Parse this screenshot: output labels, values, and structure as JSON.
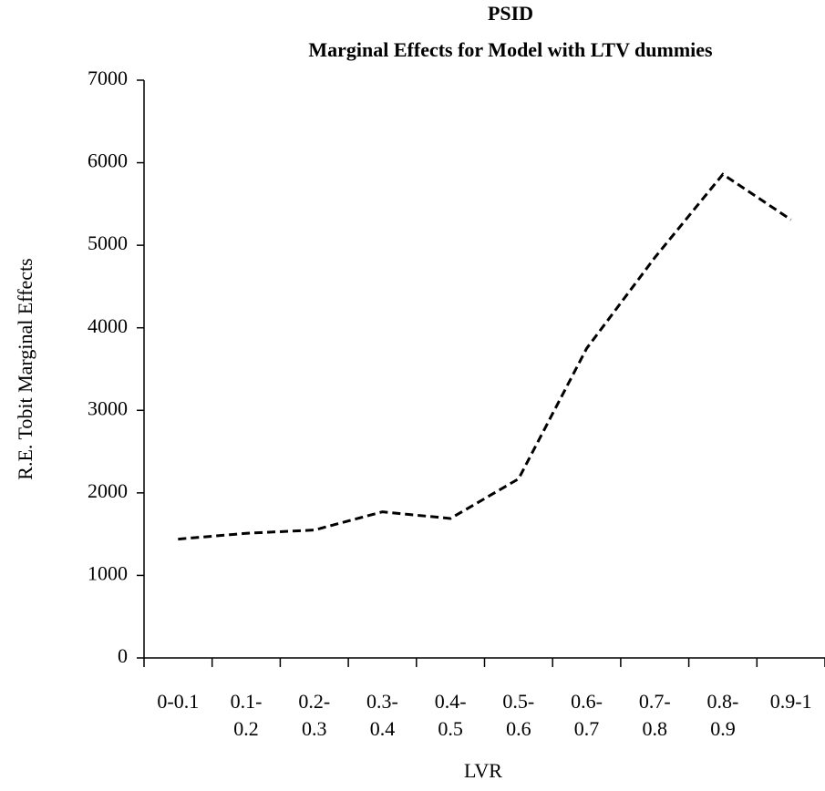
{
  "chart_data": {
    "type": "line",
    "title": "PSID",
    "subtitle": "Marginal Effects for Model with LTV dummies",
    "x_label": "LVR",
    "y_label": "R.E. Tobit Marginal Effects",
    "categories": [
      "0-0.1",
      "0.1-\n0.2",
      "0.2-\n0.3",
      "0.3-\n0.4",
      "0.4-\n0.5",
      "0.5-\n0.6",
      "0.6-\n0.7",
      "0.7-\n0.8",
      "0.8-\n0.9",
      "0.9-1"
    ],
    "series": [
      {
        "name": "R.E. Tobit Marginal Effects",
        "color": "#000000",
        "values": [
          1440,
          1510,
          1550,
          1770,
          1690,
          2170,
          3750,
          4850,
          5860,
          5310
        ]
      }
    ],
    "ylim": [
      0,
      7000
    ],
    "yticks": [
      0,
      1000,
      2000,
      3000,
      4000,
      5000,
      6000,
      7000
    ],
    "grid": false,
    "dashed": true
  }
}
